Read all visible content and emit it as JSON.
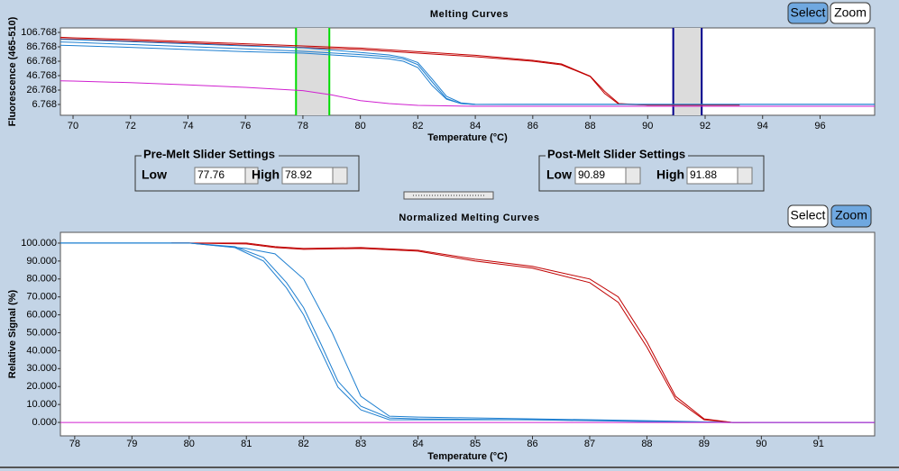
{
  "chart_data": [
    {
      "type": "line",
      "title": "Melting Curves",
      "xlabel": "Temperature (°C)",
      "ylabel": "Fluorescence (465-510)",
      "xlim": [
        69.56,
        97.9
      ],
      "xticks": [
        70,
        72,
        74,
        76,
        78,
        80,
        82,
        84,
        86,
        88,
        90,
        92,
        94,
        96
      ],
      "ylim": [
        -8.2,
        113
      ],
      "yticks": [
        6.768,
        26.768,
        46.768,
        66.768,
        86.768,
        106.768
      ],
      "series": [
        {
          "color": "#c00000",
          "x": [
            69.56,
            70,
            72,
            74,
            76,
            78,
            80,
            82,
            84,
            86,
            87,
            88,
            88.5,
            89,
            90,
            92,
            93.2
          ],
          "values": [
            100,
            99.3,
            97,
            94,
            91,
            88,
            85,
            80,
            75,
            68,
            63,
            46,
            25,
            8,
            6,
            6,
            6
          ]
        },
        {
          "color": "#c00000",
          "x": [
            69.56,
            70,
            72,
            74,
            76,
            78,
            80,
            82,
            84,
            86,
            87,
            88,
            88.5,
            89,
            90,
            92,
            93.2
          ],
          "values": [
            98,
            97.5,
            95,
            92,
            89,
            86,
            83,
            78,
            73,
            66.8,
            61.8,
            45.5,
            22,
            7,
            6,
            6,
            6
          ]
        },
        {
          "color": "#1e7fd0",
          "x": [
            69.56,
            70,
            72,
            74,
            76,
            78,
            80,
            81,
            81.5,
            82,
            82.5,
            83,
            83.5,
            84,
            86,
            90,
            94,
            97.9
          ],
          "values": [
            93.5,
            93,
            90,
            87,
            84,
            80.5,
            76,
            73,
            70,
            62,
            38,
            15,
            8,
            6.8,
            6.8,
            6.8,
            6.8,
            6.8
          ]
        },
        {
          "color": "#1e7fd0",
          "x": [
            69.56,
            70,
            72,
            74,
            76,
            78,
            80,
            81,
            81.5,
            82,
            82.5,
            83,
            83.5,
            84,
            86,
            90,
            94,
            97.9
          ],
          "values": [
            97,
            96.8,
            94,
            91,
            88,
            85.5,
            79,
            75.5,
            72,
            65,
            42,
            18,
            9,
            7,
            6.8,
            6.8,
            6.8,
            6.8
          ]
        },
        {
          "color": "#1e7fd0",
          "x": [
            69.56,
            70,
            72,
            74,
            76,
            78,
            80,
            81,
            81.5,
            82,
            82.5,
            83,
            83.5,
            84,
            86,
            90,
            94,
            97.9
          ],
          "values": [
            89,
            88.5,
            86,
            83,
            80,
            78,
            73,
            70,
            66.8,
            58,
            33,
            14,
            8,
            6.8,
            7,
            7,
            7,
            7
          ]
        },
        {
          "color": "#d020d0",
          "x": [
            69.56,
            70,
            72,
            74,
            76,
            78,
            79,
            80,
            81,
            82,
            84,
            90,
            97.9
          ],
          "values": [
            39.5,
            39.3,
            37,
            34,
            30.5,
            26,
            20,
            12,
            8,
            5.5,
            4.3,
            4.3,
            4.3
          ]
        }
      ]
    },
    {
      "type": "line",
      "title": "Normalized Melting Curves",
      "xlabel": "Temperature (°C)",
      "ylabel": "Relative Signal (%)",
      "xlim": [
        77.75,
        91.98
      ],
      "xticks": [
        78,
        79,
        80,
        81,
        82,
        83,
        84,
        85,
        86,
        87,
        88,
        89,
        90,
        91
      ],
      "ylim": [
        -7.5,
        106
      ],
      "yticks": [
        {
          "value": 0,
          "label": "0.000"
        },
        {
          "value": 10,
          "label": "10.000"
        },
        {
          "value": 20,
          "label": "20.000"
        },
        {
          "value": 30,
          "label": "30.000"
        },
        {
          "value": 40,
          "label": "40.000"
        },
        {
          "value": 50,
          "label": "50.000"
        },
        {
          "value": 60,
          "label": "60.000"
        },
        {
          "value": 70,
          "label": "70.000"
        },
        {
          "value": 80,
          "label": "80.000"
        },
        {
          "value": 90,
          "label": "90.000"
        },
        {
          "value": 100,
          "label": "100.000"
        }
      ],
      "series": [
        {
          "color": "#c00000",
          "x": [
            79.69,
            80,
            81,
            81.5,
            82,
            83,
            84,
            85,
            86,
            87,
            87.5,
            88,
            88.5,
            89,
            89.5,
            89.8
          ],
          "values": [
            100,
            100,
            100,
            98,
            97,
            97.5,
            96,
            91,
            87,
            80,
            70,
            45,
            14.6,
            2,
            0,
            0
          ]
        },
        {
          "color": "#c00000",
          "x": [
            79.69,
            80,
            81,
            81.5,
            82,
            83,
            84,
            85,
            86,
            87,
            87.5,
            88,
            88.5,
            89,
            89.5,
            89.8
          ],
          "values": [
            100,
            100,
            99.5,
            97.5,
            96.5,
            97,
            95.5,
            90,
            86,
            78,
            67,
            42,
            13,
            1.5,
            0,
            0
          ]
        },
        {
          "color": "#1e7fd0",
          "x": [
            77.75,
            80,
            80.8,
            81.3,
            81.7,
            82,
            82.3,
            82.6,
            83,
            83.5,
            84,
            86,
            88,
            89.5,
            91.98
          ],
          "values": [
            100,
            100,
            97.5,
            90,
            75,
            60,
            40,
            19.6,
            7,
            1.5,
            1.5,
            1.5,
            0.5,
            0,
            0
          ]
        },
        {
          "color": "#1e7fd0",
          "x": [
            77.75,
            80,
            80.8,
            81.3,
            81.7,
            82,
            82.3,
            82.6,
            83,
            83.5,
            84,
            86,
            88,
            89.5,
            91.98
          ],
          "values": [
            100,
            100,
            98,
            92,
            78,
            64,
            44,
            23,
            9,
            2.5,
            2,
            1.5,
            0.8,
            0,
            0
          ]
        },
        {
          "color": "#1e7fd0",
          "x": [
            77.75,
            80,
            81,
            81.5,
            82,
            82.5,
            83,
            83.5,
            84,
            86,
            88,
            89.5,
            91.98
          ],
          "values": [
            100,
            100,
            97,
            94,
            80,
            50,
            14.6,
            3.5,
            3,
            2,
            1,
            0,
            0
          ]
        },
        {
          "color": "#d020d0",
          "x": [
            77.75,
            91.98
          ],
          "values": [
            0,
            0
          ]
        }
      ]
    }
  ],
  "top_buttons": {
    "select": "Select",
    "zoom": "Zoom"
  },
  "bottom_buttons": {
    "select": "Select",
    "zoom": "Zoom"
  },
  "pre_melt": {
    "title": "Pre-Melt Slider Settings",
    "low_label": "Low",
    "low": 77.76,
    "high_label": "High",
    "high": 78.92
  },
  "post_melt": {
    "title": "Post-Melt Slider Settings",
    "low_label": "Low",
    "low": 90.89,
    "high_label": "High",
    "high": 91.88
  }
}
